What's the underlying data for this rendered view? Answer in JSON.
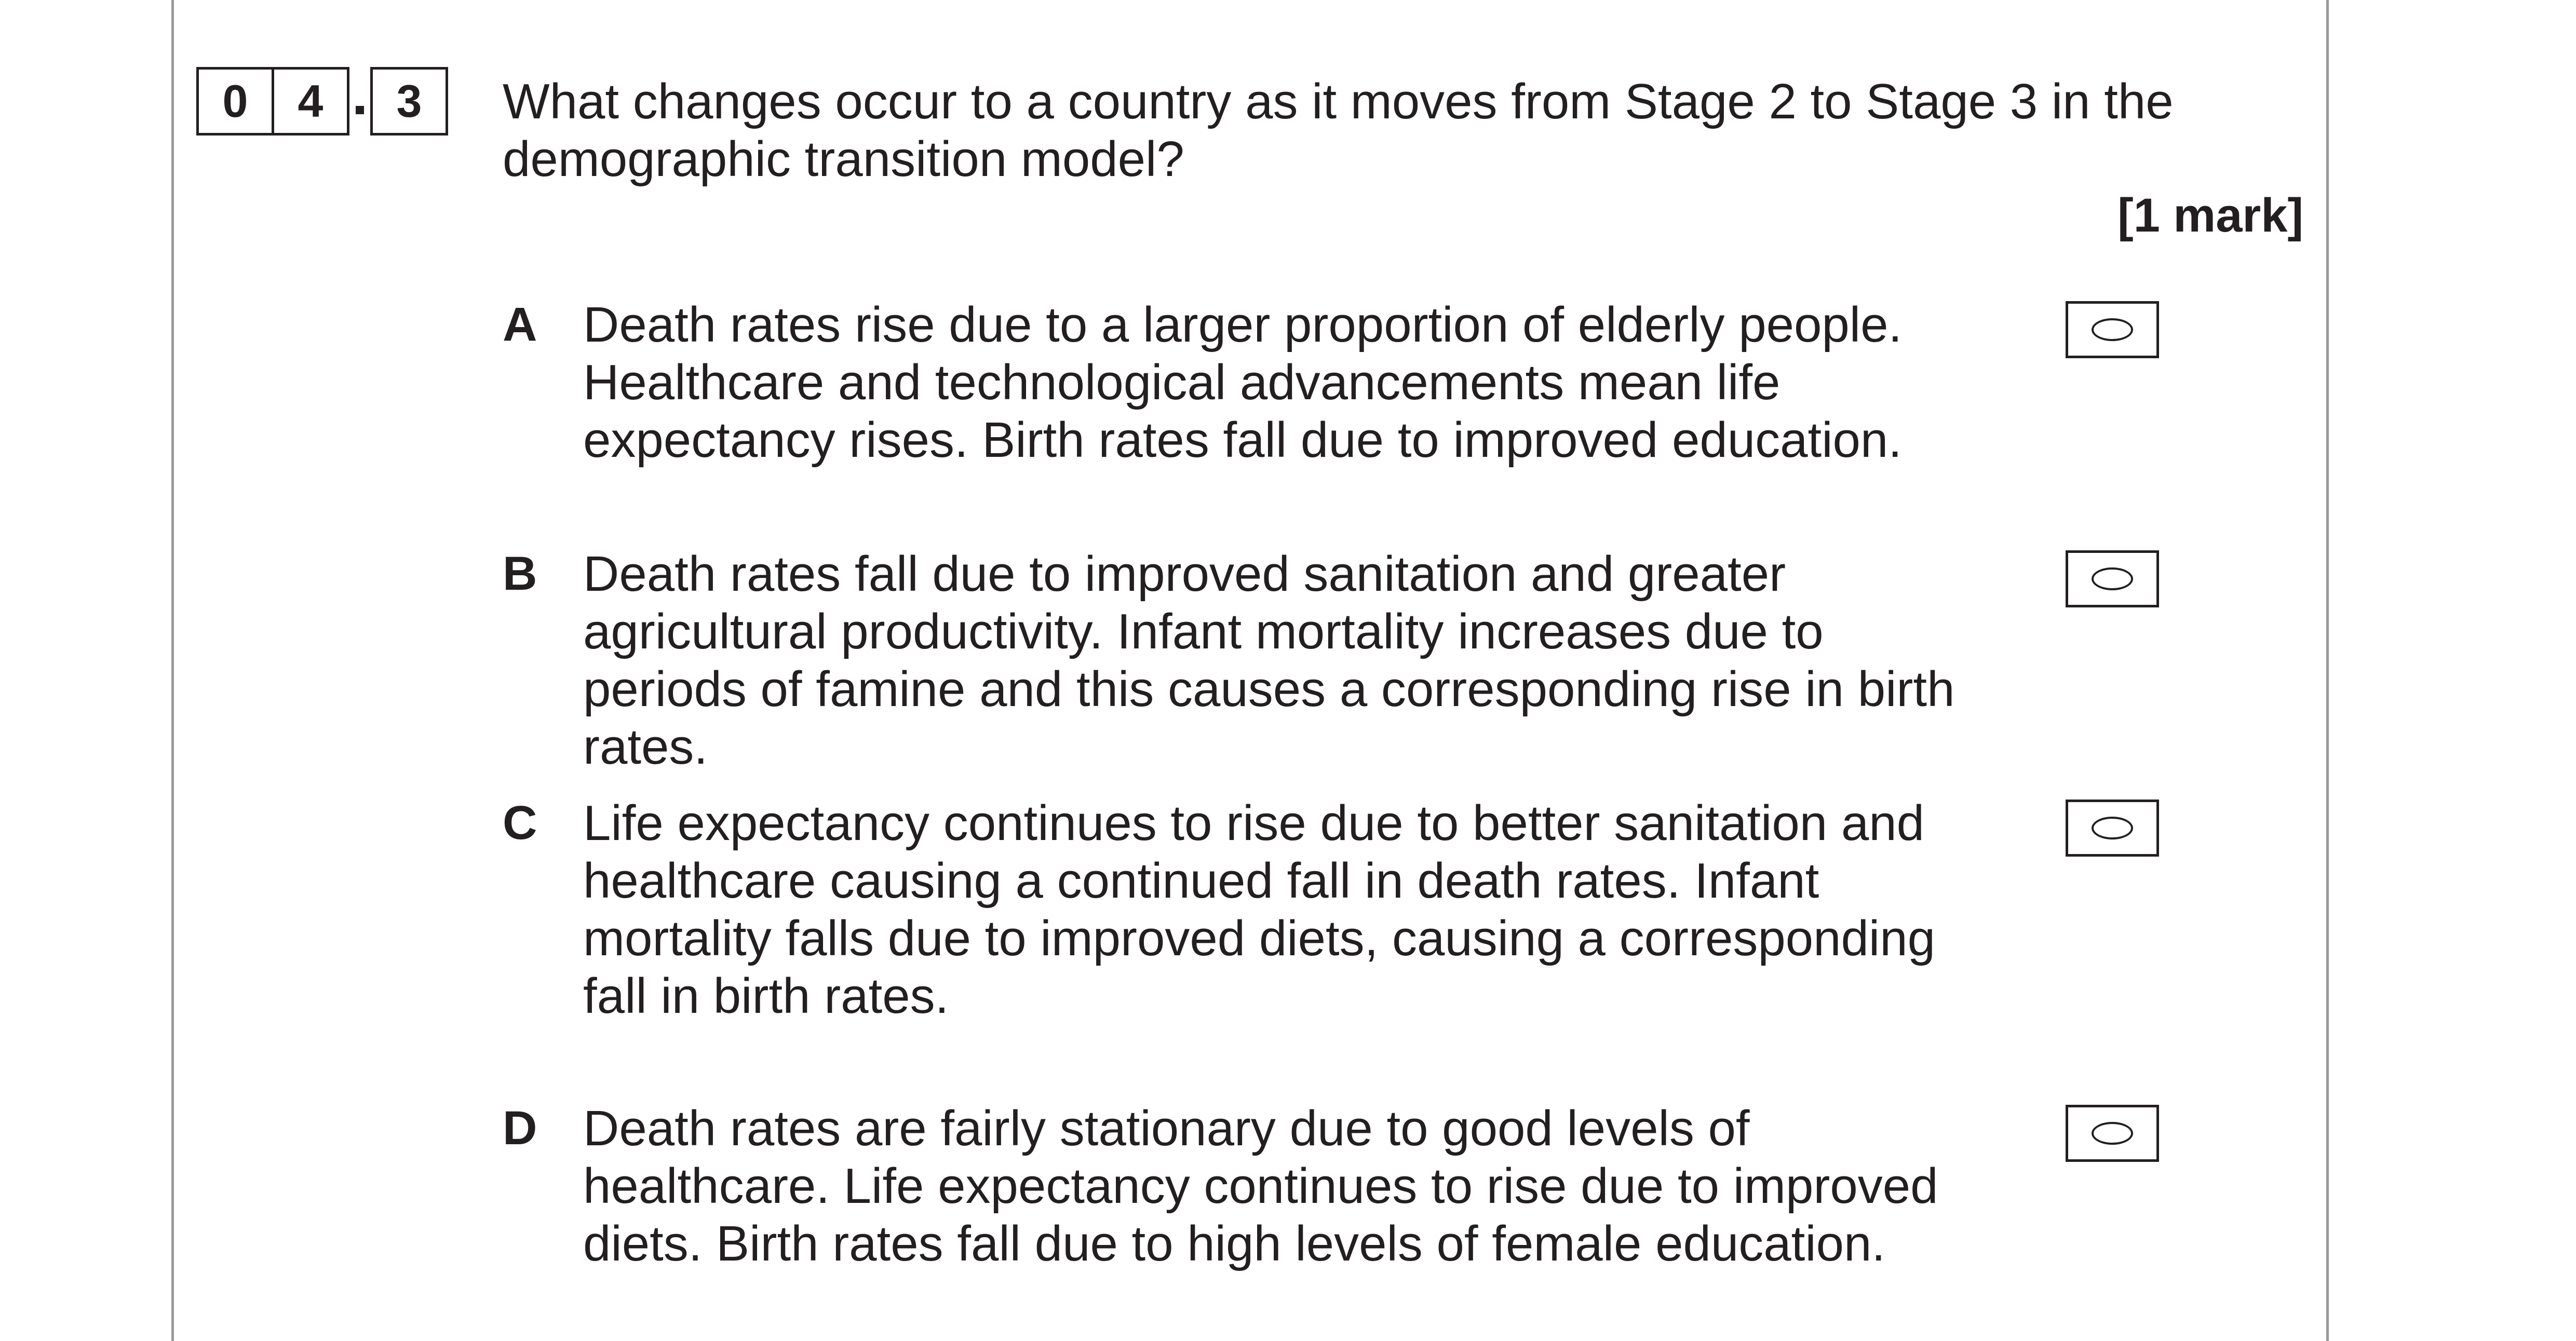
{
  "question": {
    "number_digits": [
      "0",
      "4",
      "3"
    ],
    "text": "What changes occur to a country as it moves from Stage 2 to Stage 3 in the demographic transition model?",
    "marks": "[1 mark]"
  },
  "options": [
    {
      "letter": "A",
      "text": "Death rates rise due to a larger proportion of elderly people. Healthcare and technological advancements mean life expectancy rises.  Birth rates fall due to improved education.",
      "selected": false
    },
    {
      "letter": "B",
      "text": "Death rates fall due to improved sanitation and greater agricultural productivity.  Infant mortality increases due to periods of famine and this causes a corresponding rise in birth rates.",
      "selected": false
    },
    {
      "letter": "C",
      "text": "Life expectancy continues to rise due to better sanitation and healthcare causing a continued fall in death rates.  Infant mortality falls due to improved diets, causing a corresponding fall in birth rates.",
      "selected": false
    },
    {
      "letter": "D",
      "text": "Death rates are fairly stationary due to good levels of healthcare. Life expectancy continues to rise due to improved diets.  Birth rates fall due to high levels of female education.",
      "selected": false
    }
  ]
}
